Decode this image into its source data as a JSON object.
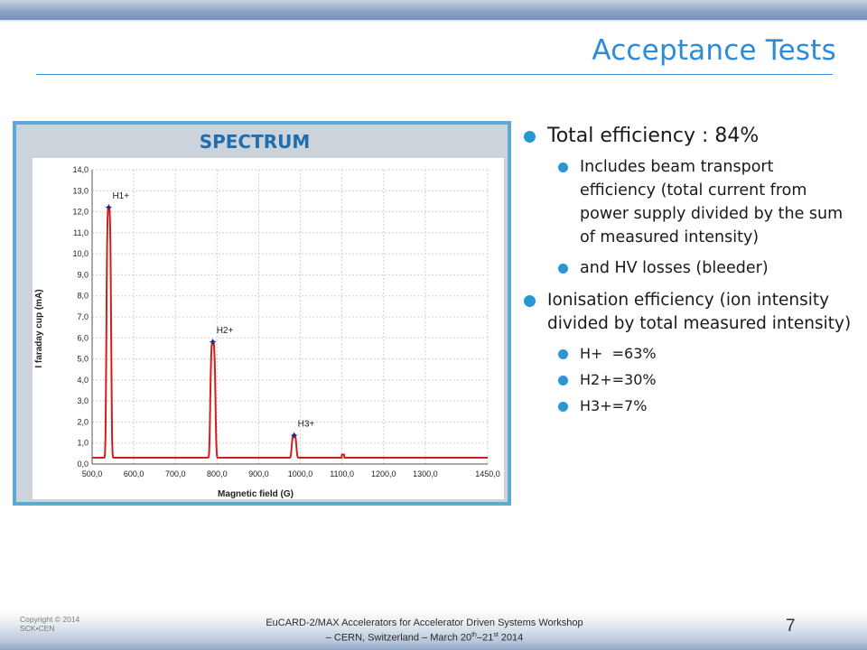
{
  "slide": {
    "title": "Acceptance Tests",
    "page_number": "7"
  },
  "bullets": [
    {
      "level": 1,
      "text": "Total efficiency : 84%"
    },
    {
      "level": 2,
      "text": "Includes beam transport efficiency (total current from power supply divided by the sum of measured intensity)"
    },
    {
      "level": 2,
      "text": "and HV losses (bleeder)"
    },
    {
      "level": 1,
      "text": "Ionisation efficiency (ion intensity divided by total measured intensity)"
    },
    {
      "level": 3,
      "text": "H+  =63%"
    },
    {
      "level": 3,
      "text": "H2+=30%"
    },
    {
      "level": 3,
      "text": "H3+=7%"
    }
  ],
  "footer": {
    "copyright_line1": "Copyright © 2014",
    "copyright_line2": "SCK•CEN",
    "line1": "EuCARD-2/MAX Accelerators for Accelerator Driven Systems Workshop",
    "line2_prefix": "– CERN, Switzerland – March 20",
    "line2_sup1": "th",
    "line2_mid": "–21",
    "line2_sup2": "st",
    "line2_suffix": " 2014"
  },
  "colors": {
    "accent": "#2e8bd8",
    "bullet": "#2a96d4",
    "chart_frame": "#5ea9d2",
    "chart_title": "#1f6fb0",
    "spectrum_line": "#d11e1e"
  },
  "chart_data": {
    "type": "line",
    "title": "SPECTRUM",
    "xlabel": "Magnetic field (G)",
    "ylabel": "I faraday cup (mA)",
    "xlim": [
      500,
      1450
    ],
    "ylim": [
      0,
      14
    ],
    "x_ticks": [
      "500,0",
      "600,0",
      "700,0",
      "800,0",
      "900,0",
      "1000,0",
      "1100,0",
      "1200,0",
      "1300,0",
      "1450,0"
    ],
    "x_tick_values": [
      500,
      600,
      700,
      800,
      900,
      1000,
      1100,
      1200,
      1300,
      1450
    ],
    "y_ticks": [
      "0,0",
      "1,0",
      "2,0",
      "3,0",
      "4,0",
      "5,0",
      "6,0",
      "7,0",
      "8,0",
      "9,0",
      "10,0",
      "11,0",
      "12,0",
      "13,0",
      "14,0"
    ],
    "y_tick_values": [
      0,
      1,
      2,
      3,
      4,
      5,
      6,
      7,
      8,
      9,
      10,
      11,
      12,
      13,
      14
    ],
    "grid": true,
    "peaks": [
      {
        "label": "H1+",
        "x": 540,
        "y": 12.2,
        "width": 14
      },
      {
        "label": "H2+",
        "x": 790,
        "y": 5.8,
        "width": 15
      },
      {
        "label": "H3+",
        "x": 985,
        "y": 1.35,
        "width": 14
      }
    ],
    "baseline": 0.3
  }
}
